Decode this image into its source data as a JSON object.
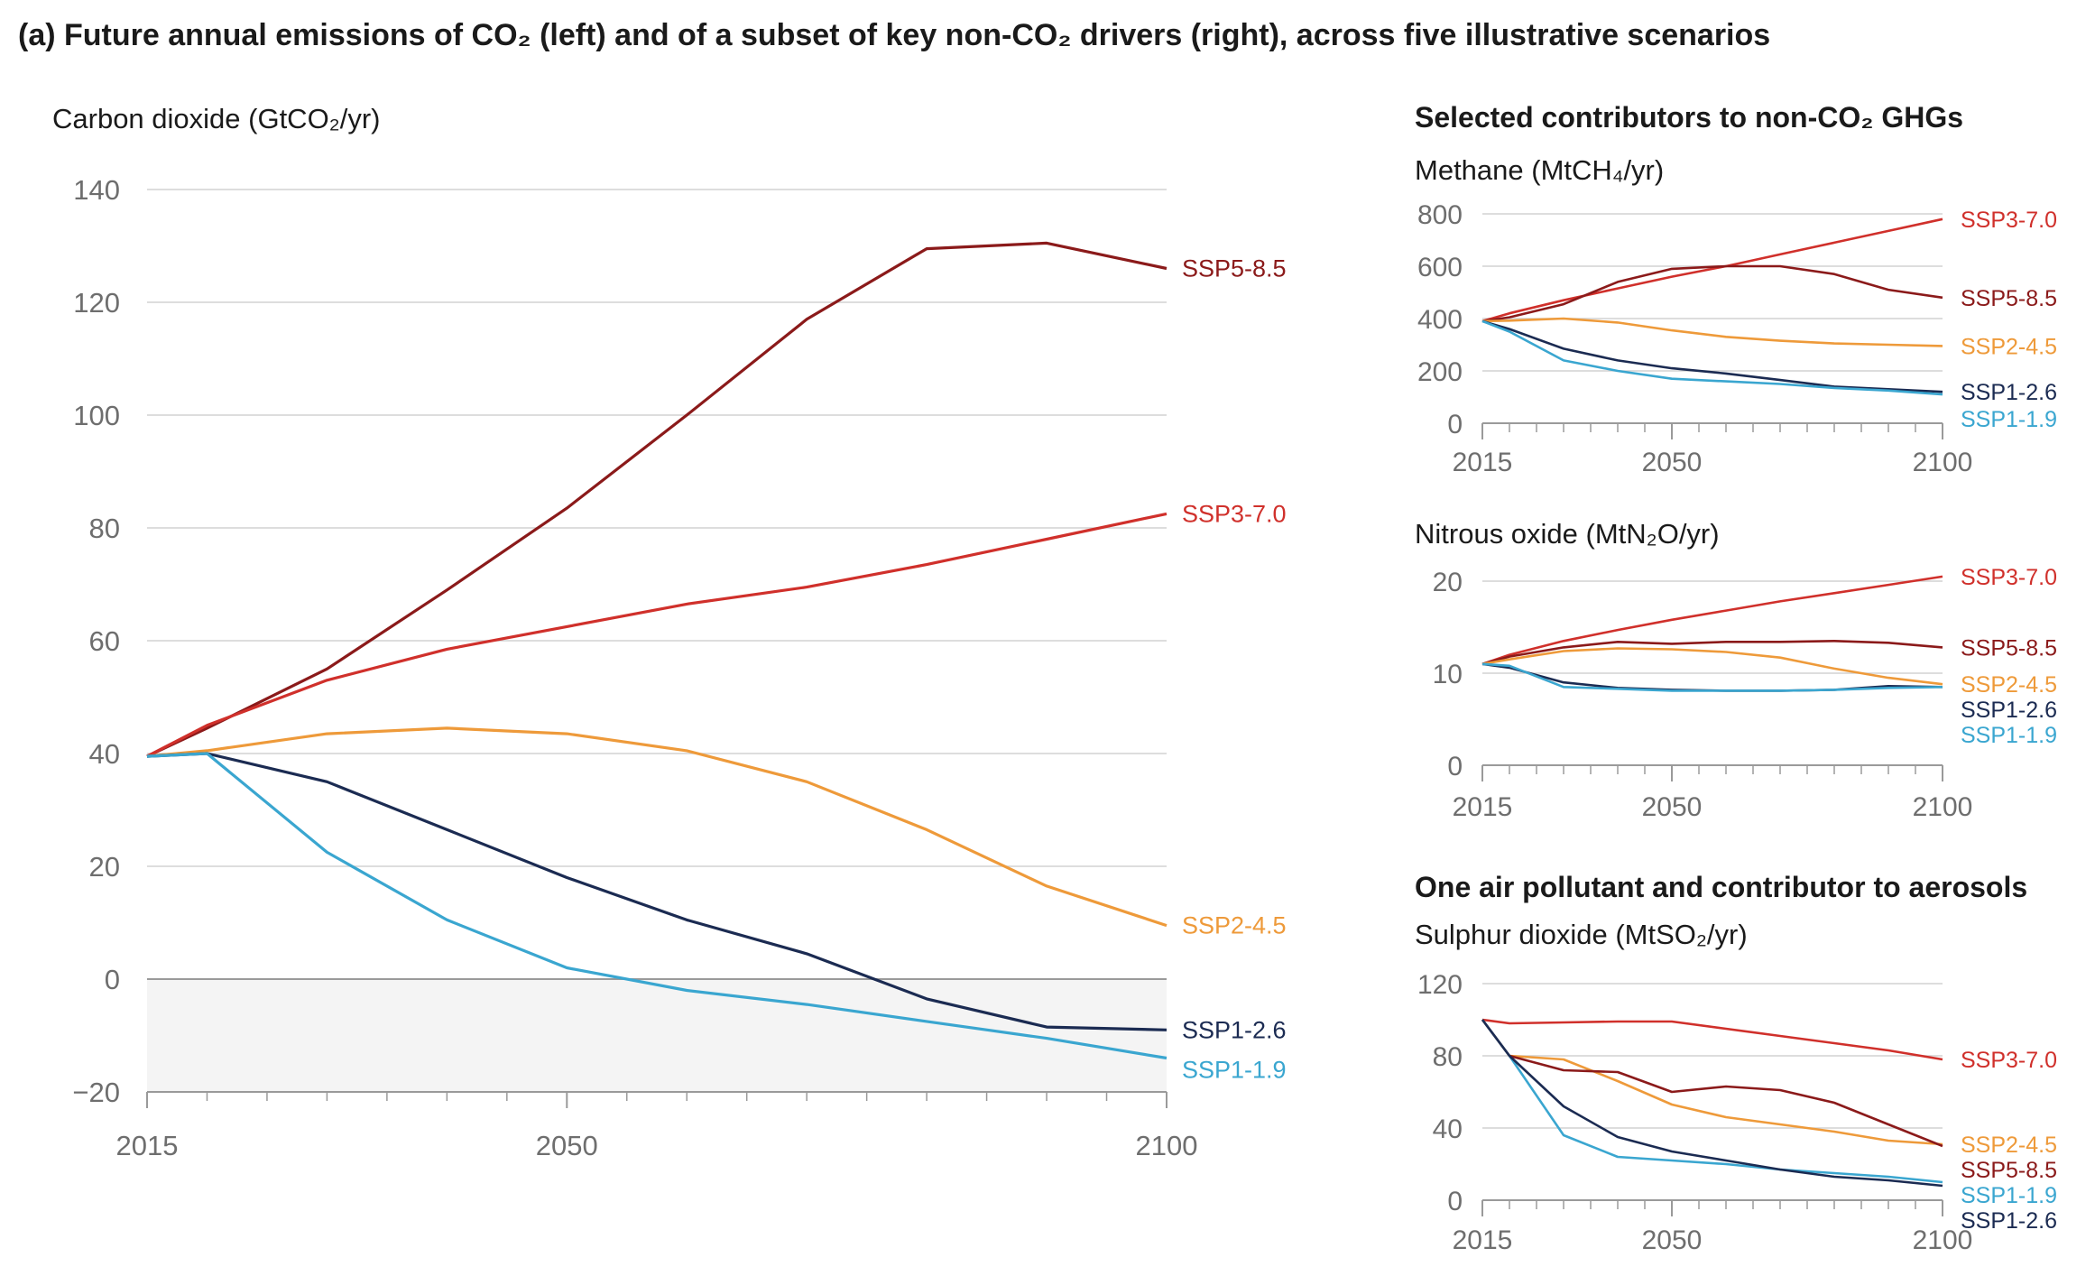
{
  "title": "(a) Future annual emissions of CO₂ (left) and of a subset of key non-CO₂ drivers (right), across five illustrative scenarios",
  "colors": {
    "SSP5-8.5": "#8b1a1a",
    "SSP3-7.0": "#d0302b",
    "SSP2-4.5": "#ee9a3a",
    "SSP1-2.6": "#1b2b52",
    "SSP1-1.9": "#3aa6d0"
  },
  "panel_headings": {
    "ghg": "Selected contributors to non-CO₂ GHGs",
    "aerosol": "One air pollutant and contributor to aerosols"
  },
  "chart_data": [
    {
      "type": "line",
      "ylabel": "Carbon dioxide (GtCO₂/yr)",
      "xlim": [
        2015,
        2100
      ],
      "ylim": [
        -20,
        140
      ],
      "yticks": [
        140,
        120,
        100,
        80,
        60,
        40,
        20,
        0,
        -20
      ],
      "xticks": [
        2015,
        2050,
        2100
      ],
      "x": [
        2015,
        2020,
        2030,
        2040,
        2050,
        2060,
        2070,
        2080,
        2090,
        2100
      ],
      "series": [
        {
          "name": "SSP5-8.5",
          "values": [
            39.5,
            44.5,
            55,
            69,
            83.5,
            100,
            117,
            129.5,
            130.5,
            126
          ]
        },
        {
          "name": "SSP3-7.0",
          "values": [
            39.5,
            45,
            53,
            58.5,
            62.5,
            66.5,
            69.5,
            73.5,
            78,
            82.5
          ]
        },
        {
          "name": "SSP2-4.5",
          "values": [
            39.5,
            40.5,
            43.5,
            44.5,
            43.5,
            40.5,
            35,
            26.5,
            16.5,
            9.5
          ]
        },
        {
          "name": "SSP1-2.6",
          "values": [
            39.5,
            40,
            35,
            26.5,
            18,
            10.5,
            4.5,
            -3.5,
            -8.5,
            -9
          ]
        },
        {
          "name": "SSP1-1.9",
          "values": [
            39.5,
            40,
            22.5,
            10.5,
            2,
            -2,
            -4.5,
            -7.5,
            -10.5,
            -14
          ]
        }
      ]
    },
    {
      "type": "line",
      "ylabel": "Methane (MtCH₄/yr)",
      "xlim": [
        2015,
        2100
      ],
      "ylim": [
        0,
        800
      ],
      "yticks": [
        800,
        600,
        400,
        200,
        0
      ],
      "xticks": [
        2015,
        2050,
        2100
      ],
      "x": [
        2015,
        2020,
        2030,
        2040,
        2050,
        2060,
        2070,
        2080,
        2090,
        2100
      ],
      "series": [
        {
          "name": "SSP3-7.0",
          "values": [
            390,
            420,
            470,
            515,
            560,
            600,
            645,
            690,
            735,
            780
          ]
        },
        {
          "name": "SSP5-8.5",
          "values": [
            390,
            405,
            455,
            540,
            590,
            600,
            600,
            570,
            510,
            480
          ]
        },
        {
          "name": "SSP2-4.5",
          "values": [
            390,
            392,
            400,
            385,
            355,
            330,
            315,
            305,
            300,
            295
          ]
        },
        {
          "name": "SSP1-2.6",
          "values": [
            390,
            360,
            285,
            240,
            210,
            190,
            165,
            140,
            130,
            120
          ]
        },
        {
          "name": "SSP1-1.9",
          "values": [
            390,
            350,
            240,
            200,
            170,
            160,
            150,
            135,
            125,
            110
          ]
        }
      ]
    },
    {
      "type": "line",
      "ylabel": "Nitrous oxide (MtN₂O/yr)",
      "xlim": [
        2015,
        2100
      ],
      "ylim": [
        0,
        20
      ],
      "yticks": [
        20,
        10,
        0
      ],
      "xticks": [
        2015,
        2050,
        2100
      ],
      "x": [
        2015,
        2020,
        2030,
        2040,
        2050,
        2060,
        2070,
        2080,
        2090,
        2100
      ],
      "series": [
        {
          "name": "SSP3-7.0",
          "values": [
            11,
            12,
            13.5,
            14.7,
            15.8,
            16.8,
            17.8,
            18.7,
            19.6,
            20.5
          ]
        },
        {
          "name": "SSP5-8.5",
          "values": [
            11,
            11.8,
            12.8,
            13.4,
            13.2,
            13.4,
            13.4,
            13.5,
            13.3,
            12.8
          ]
        },
        {
          "name": "SSP2-4.5",
          "values": [
            11,
            11.5,
            12.4,
            12.7,
            12.6,
            12.3,
            11.7,
            10.5,
            9.5,
            8.8
          ]
        },
        {
          "name": "SSP1-2.6",
          "values": [
            11,
            10.6,
            9,
            8.4,
            8.2,
            8.1,
            8.1,
            8.2,
            8.6,
            8.5
          ]
        },
        {
          "name": "SSP1-1.9",
          "values": [
            11,
            10.8,
            8.5,
            8.3,
            8.1,
            8.1,
            8.1,
            8.2,
            8.4,
            8.5
          ]
        }
      ]
    },
    {
      "type": "line",
      "ylabel": "Sulphur dioxide (MtSO₂/yr)",
      "xlim": [
        2015,
        2100
      ],
      "ylim": [
        0,
        120
      ],
      "yticks": [
        120,
        80,
        40,
        0
      ],
      "xticks": [
        2015,
        2050,
        2100
      ],
      "x": [
        2015,
        2020,
        2030,
        2040,
        2050,
        2060,
        2070,
        2080,
        2090,
        2100
      ],
      "series": [
        {
          "name": "SSP3-7.0",
          "values": [
            100,
            98,
            98.5,
            99,
            99,
            95,
            91,
            87,
            83,
            78
          ]
        },
        {
          "name": "SSP2-4.5",
          "values": [
            100,
            80,
            78,
            66,
            53,
            46,
            42,
            38,
            33,
            31
          ]
        },
        {
          "name": "SSP5-8.5",
          "values": [
            100,
            80,
            72,
            71,
            60,
            63,
            61,
            54,
            42,
            30
          ]
        },
        {
          "name": "SSP1-1.9",
          "values": [
            100,
            80,
            36,
            24,
            22,
            20,
            17,
            15,
            13,
            10
          ]
        },
        {
          "name": "SSP1-2.6",
          "values": [
            100,
            80,
            52,
            35,
            27,
            22,
            17,
            13,
            11,
            8
          ]
        }
      ]
    }
  ]
}
